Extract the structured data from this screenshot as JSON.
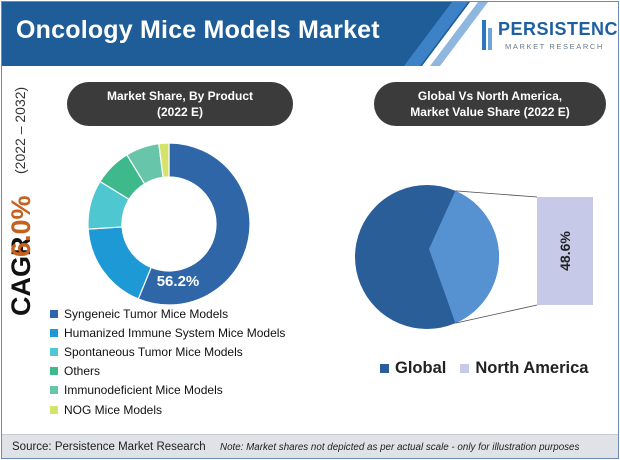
{
  "header": {
    "title": "Oncology Mice Models Market",
    "logo_name": "PERSISTENCE",
    "logo_sub": "MARKET RESEARCH"
  },
  "cagr": {
    "label": "CAGR",
    "value": "6.0%",
    "period": "(2022 – 2032)"
  },
  "colors": {
    "header_blue": "#1f5d99",
    "accent_blue": "#2b76bd",
    "cagr_orange": "#c5611f",
    "pill_dark": "#3b3b3b",
    "footer_gray": "#dfe2e6"
  },
  "left_chart": {
    "title_line1": "Market Share, By Product",
    "title_line2": "(2022 E)"
  },
  "right_chart": {
    "title_line1": "Global Vs North America,",
    "title_line2": "Market Value Share (2022 E)",
    "callout_label": "48.6%"
  },
  "chart_data": [
    {
      "type": "pie",
      "variant": "donut",
      "categories": [
        "Syngeneic Tumor Mice Models",
        "Humanized Immune System Mice Models",
        "Spontaneous Tumor Mice Models",
        "Others",
        "Immunodeficient Mice Models",
        "NOG Mice Models"
      ],
      "values": [
        56.2,
        17.8,
        9.8,
        7.5,
        6.7,
        2.0
      ],
      "colors": [
        "#2e66a8",
        "#1d9ad6",
        "#4ec7d0",
        "#3db98b",
        "#67c6a9",
        "#d5e26b"
      ],
      "data_labels": [
        "56.2%",
        "",
        "",
        "",
        "",
        ""
      ],
      "legend_placement": "bottom"
    },
    {
      "type": "pie",
      "categories": [
        "Global",
        "North America"
      ],
      "values": [
        100,
        48.6
      ],
      "colors": [
        "#2a5e98",
        "#c7c9e8"
      ],
      "inner_slice_color": "#5692d1",
      "data_labels": [
        "",
        "48.6%"
      ],
      "legend_placement": "bottom"
    }
  ],
  "footer": {
    "source": "Source: Persistence Market Research",
    "note": "Note: Market shares not depicted as per actual scale - only for illustration purposes"
  }
}
